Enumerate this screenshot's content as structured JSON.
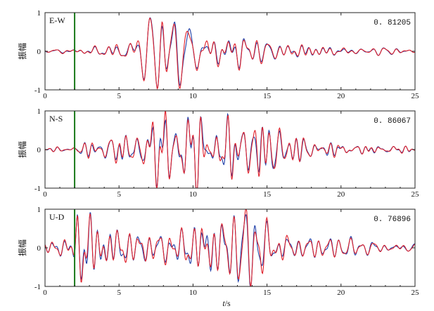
{
  "chart_data": {
    "type": "line",
    "xlabel_italic": "t",
    "xlabel_unit": "/s",
    "xlim": [
      0,
      25
    ],
    "ylim": [
      -1,
      1
    ],
    "xticks": [
      "0",
      "5",
      "10",
      "15",
      "20",
      "25"
    ],
    "yticks": [
      "1",
      "0",
      "-1"
    ],
    "marker_x": 2.0,
    "colors": {
      "series1": "#1f3fa8",
      "series2": "#e0202a",
      "marker": "#1a7a1a",
      "axis": "#222222"
    },
    "panels": [
      {
        "label": "E-W",
        "ylabel": "振幅",
        "coefficient": "0. 81205",
        "envelope": [
          [
            0,
            0.04
          ],
          [
            2,
            0.05
          ],
          [
            4,
            0.1
          ],
          [
            5.5,
            0.25
          ],
          [
            6.5,
            0.6
          ],
          [
            7.5,
            0.85
          ],
          [
            8.2,
            1.0
          ],
          [
            9,
            0.95
          ],
          [
            10,
            0.7
          ],
          [
            11,
            0.5
          ],
          [
            12,
            0.4
          ],
          [
            13,
            0.35
          ],
          [
            14,
            0.3
          ],
          [
            15,
            0.25
          ],
          [
            17,
            0.18
          ],
          [
            20,
            0.12
          ],
          [
            23,
            0.08
          ],
          [
            25,
            0.06
          ]
        ],
        "seed": 11
      },
      {
        "label": "N-S",
        "ylabel": "振幅",
        "coefficient": "0. 86067",
        "envelope": [
          [
            0,
            0.03
          ],
          [
            2,
            0.05
          ],
          [
            3,
            0.15
          ],
          [
            5,
            0.25
          ],
          [
            6.5,
            0.4
          ],
          [
            7.5,
            0.65
          ],
          [
            8.5,
            1.0
          ],
          [
            9.5,
            0.9
          ],
          [
            10.5,
            0.75
          ],
          [
            11.5,
            0.6
          ],
          [
            13,
            0.5
          ],
          [
            14.5,
            0.5
          ],
          [
            15.5,
            0.45
          ],
          [
            17,
            0.25
          ],
          [
            19,
            0.15
          ],
          [
            22,
            0.1
          ],
          [
            25,
            0.06
          ]
        ],
        "seed": 23
      },
      {
        "label": "U-D",
        "ylabel": "振幅",
        "coefficient": "0. 76896",
        "envelope": [
          [
            0,
            0.15
          ],
          [
            1.8,
            0.2
          ],
          [
            2.2,
            0.9
          ],
          [
            2.8,
            1.0
          ],
          [
            4,
            0.6
          ],
          [
            6,
            0.45
          ],
          [
            8,
            0.4
          ],
          [
            10,
            0.55
          ],
          [
            10.5,
            0.8
          ],
          [
            12,
            0.7
          ],
          [
            13.5,
            0.8
          ],
          [
            14.5,
            1.0
          ],
          [
            15.5,
            0.6
          ],
          [
            17,
            0.35
          ],
          [
            19,
            0.25
          ],
          [
            22,
            0.18
          ],
          [
            25,
            0.12
          ]
        ],
        "seed": 37
      }
    ]
  }
}
